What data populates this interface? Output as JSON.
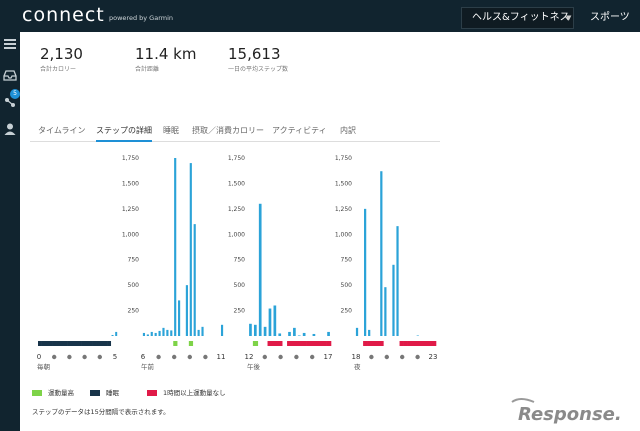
{
  "header": {
    "logo": "connect",
    "logo_sub": "powered by Garmin",
    "nav_health": "ヘルス&フィットネス",
    "nav_sports": "スポーツ"
  },
  "sidebar": {
    "badge": "5"
  },
  "stats": [
    {
      "value": "2,130",
      "label": "合計カロリー"
    },
    {
      "value": "11.4 km",
      "label": "合計距離"
    },
    {
      "value": "15,613",
      "label": "一日の平均ステップ数"
    }
  ],
  "tabs": [
    "タイムライン",
    "ステップの詳細",
    "睡眠",
    "摂取／消費カロリー",
    "アクティビティ",
    "内訳"
  ],
  "chart_data": {
    "type": "bar",
    "title": "",
    "yticks": [
      250,
      500,
      750,
      1000,
      1250,
      1500,
      1750
    ],
    "ytick_labels": [
      "250",
      "500",
      "750",
      "1,000",
      "1,250",
      "1,500",
      "1,750"
    ],
    "ylim": [
      0,
      1750
    ],
    "panels": [
      {
        "period": "毎朝",
        "start": "0",
        "end": "5",
        "values": [
          0,
          0,
          0,
          0,
          0,
          0,
          0,
          0,
          0,
          0,
          0,
          0,
          0,
          0,
          0,
          0,
          0,
          0,
          0,
          0,
          10,
          40
        ],
        "status": [
          "sleep",
          "sleep",
          "sleep",
          "sleep",
          "sleep",
          "sleep",
          "sleep",
          "sleep",
          "sleep",
          "sleep",
          "sleep",
          "sleep",
          "sleep",
          "sleep",
          "sleep",
          "sleep",
          "sleep",
          "sleep",
          "sleep",
          "sleep",
          "none",
          "none"
        ]
      },
      {
        "period": "午前",
        "start": "6",
        "end": "11",
        "values": [
          30,
          15,
          40,
          30,
          50,
          80,
          60,
          55,
          1750,
          350,
          0,
          500,
          1700,
          1100,
          60,
          90,
          0,
          0,
          0,
          0,
          110
        ],
        "status": [
          "none",
          "none",
          "none",
          "none",
          "none",
          "none",
          "none",
          "none",
          "active",
          "none",
          "none",
          "none",
          "active",
          "none",
          "none",
          "none",
          "none",
          "none",
          "none",
          "none",
          "none"
        ]
      },
      {
        "period": "午後",
        "start": "12",
        "end": "17",
        "values": [
          120,
          110,
          1300,
          90,
          270,
          300,
          25,
          0,
          40,
          80,
          5,
          30,
          0,
          20,
          0,
          0,
          40
        ],
        "status": [
          "none",
          "active",
          "none",
          "none",
          "inactive",
          "inactive",
          "inactive",
          "none",
          "inactive",
          "inactive",
          "inactive",
          "inactive",
          "inactive",
          "inactive",
          "inactive",
          "inactive",
          "inactive"
        ]
      },
      {
        "period": "夜",
        "start": "18",
        "end": "23",
        "values": [
          80,
          0,
          1250,
          60,
          0,
          0,
          1620,
          480,
          0,
          700,
          1080,
          0,
          0,
          0,
          0,
          5,
          0,
          0,
          0,
          0
        ],
        "status": [
          "none",
          "none",
          "inactive",
          "inactive",
          "inactive",
          "inactive",
          "inactive",
          "none",
          "none",
          "none",
          "none",
          "inactive",
          "inactive",
          "inactive",
          "inactive",
          "inactive",
          "inactive",
          "inactive",
          "inactive",
          "inactive"
        ]
      }
    ],
    "legend": [
      {
        "key": "active",
        "label": "運動量高",
        "color": "#7ed348"
      },
      {
        "key": "sleep",
        "label": "睡眠",
        "color": "#18344a"
      },
      {
        "key": "inactive",
        "label": "1時間以上運動量なし",
        "color": "#e01a48"
      }
    ],
    "bar_color": "#2ba3d8"
  },
  "note": "ステップのデータは15分間隔で表示されます。",
  "watermark": "Response."
}
